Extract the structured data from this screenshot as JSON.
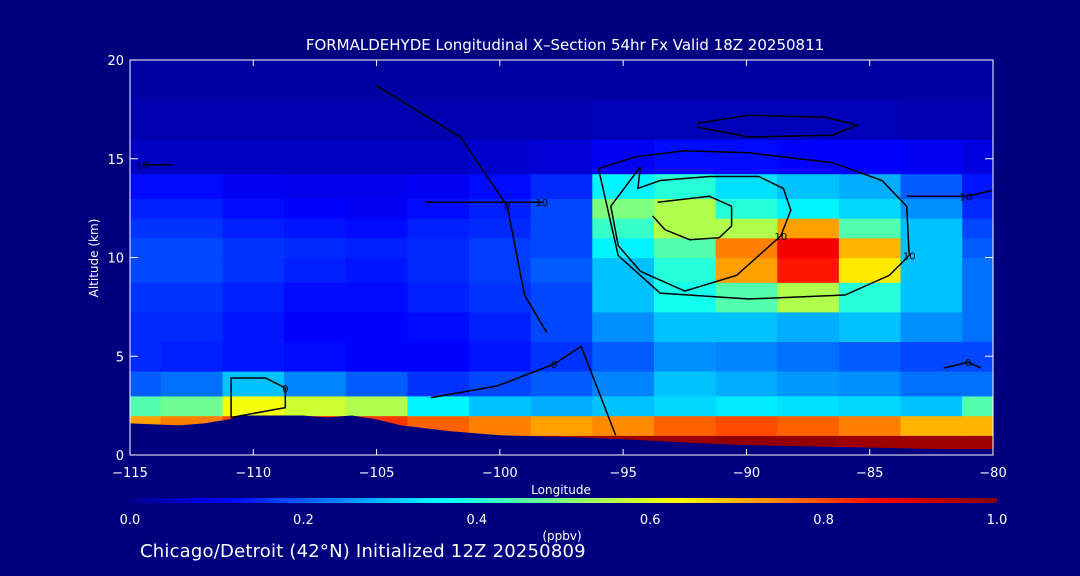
{
  "chart_data": {
    "type": "heatmap",
    "title": "FORMALDEHYDE Longitudinal X–Section 54hr  Fx Valid 18Z 20250811",
    "xlabel": "Longitude",
    "ylabel": "Altitude (km)",
    "xlim": [
      -115,
      -80
    ],
    "ylim": [
      0,
      20
    ],
    "x_ticks": [
      -115,
      -110,
      -105,
      -100,
      -95,
      -90,
      -85,
      -80
    ],
    "x_tick_labels": [
      "−115",
      "−110",
      "−105",
      "−100",
      "−95",
      "−90",
      "−85",
      "−80"
    ],
    "y_ticks": [
      0,
      5,
      10,
      15,
      20
    ],
    "y_tick_labels": [
      "0",
      "5",
      "10",
      "15",
      "20"
    ],
    "grid": false,
    "colorbar": {
      "range": [
        0.0,
        1.0
      ],
      "ticks": [
        0.0,
        0.2,
        0.4,
        0.6,
        0.8,
        1.0
      ],
      "tick_labels": [
        "0.0",
        "0.2",
        "0.4",
        "0.6",
        "0.8",
        "1.0"
      ],
      "unit": "(ppbv)",
      "colormap": "jet"
    },
    "x": [
      -115,
      -112.5,
      -110,
      -107.5,
      -105,
      -102.5,
      -100,
      -97.5,
      -95,
      -92.5,
      -90,
      -87.5,
      -85,
      -82.5,
      -80
    ],
    "y": [
      0.5,
      1.5,
      2.5,
      3.5,
      5,
      6.5,
      8,
      9.5,
      10.5,
      11.5,
      12.5,
      13.5,
      15,
      17,
      19
    ],
    "z": [
      [
        0.97,
        0.97,
        0.97,
        0.98,
        0.97,
        0.97,
        0.96,
        0.96,
        0.97,
        0.97,
        0.98,
        0.98,
        0.97,
        0.97,
        0.97
      ],
      [
        0.72,
        0.75,
        0.8,
        0.85,
        0.82,
        0.78,
        0.75,
        0.72,
        0.74,
        0.78,
        0.8,
        0.78,
        0.75,
        0.7,
        0.7
      ],
      [
        0.45,
        0.48,
        0.62,
        0.58,
        0.55,
        0.35,
        0.3,
        0.28,
        0.3,
        0.32,
        0.34,
        0.33,
        0.32,
        0.3,
        0.45
      ],
      [
        0.2,
        0.22,
        0.3,
        0.24,
        0.2,
        0.16,
        0.18,
        0.2,
        0.24,
        0.3,
        0.28,
        0.26,
        0.25,
        0.22,
        0.22
      ],
      [
        0.15,
        0.14,
        0.13,
        0.12,
        0.11,
        0.11,
        0.13,
        0.16,
        0.2,
        0.25,
        0.24,
        0.22,
        0.2,
        0.18,
        0.18
      ],
      [
        0.15,
        0.15,
        0.13,
        0.11,
        0.11,
        0.12,
        0.14,
        0.18,
        0.25,
        0.3,
        0.3,
        0.28,
        0.3,
        0.25,
        0.22
      ],
      [
        0.16,
        0.16,
        0.14,
        0.12,
        0.12,
        0.14,
        0.16,
        0.18,
        0.3,
        0.38,
        0.45,
        0.55,
        0.4,
        0.3,
        0.22
      ],
      [
        0.18,
        0.18,
        0.16,
        0.14,
        0.13,
        0.15,
        0.17,
        0.2,
        0.3,
        0.4,
        0.72,
        0.85,
        0.65,
        0.3,
        0.22
      ],
      [
        0.18,
        0.18,
        0.16,
        0.15,
        0.14,
        0.15,
        0.17,
        0.18,
        0.35,
        0.45,
        0.75,
        0.88,
        0.7,
        0.3,
        0.2
      ],
      [
        0.16,
        0.16,
        0.14,
        0.13,
        0.12,
        0.14,
        0.15,
        0.18,
        0.42,
        0.55,
        0.55,
        0.72,
        0.45,
        0.3,
        0.18
      ],
      [
        0.14,
        0.14,
        0.12,
        0.11,
        0.1,
        0.12,
        0.14,
        0.18,
        0.5,
        0.55,
        0.4,
        0.35,
        0.32,
        0.25,
        0.15
      ],
      [
        0.12,
        0.12,
        0.1,
        0.09,
        0.09,
        0.1,
        0.12,
        0.15,
        0.35,
        0.4,
        0.33,
        0.3,
        0.28,
        0.2,
        0.13
      ],
      [
        0.05,
        0.05,
        0.05,
        0.05,
        0.05,
        0.05,
        0.06,
        0.07,
        0.1,
        0.12,
        0.12,
        0.11,
        0.11,
        0.1,
        0.08
      ],
      [
        0.03,
        0.03,
        0.03,
        0.03,
        0.03,
        0.03,
        0.03,
        0.03,
        0.04,
        0.04,
        0.04,
        0.04,
        0.04,
        0.03,
        0.03
      ],
      [
        0.02,
        0.02,
        0.02,
        0.02,
        0.02,
        0.02,
        0.02,
        0.02,
        0.02,
        0.02,
        0.02,
        0.02,
        0.02,
        0.02,
        0.02
      ]
    ],
    "terrain": {
      "x": [
        -115,
        -113,
        -112,
        -111,
        -110.5,
        -108,
        -107,
        -106,
        -105,
        -104,
        -102,
        -100,
        -97,
        -95,
        -92,
        -90,
        -88,
        -86,
        -84,
        -82,
        -80
      ],
      "height_km": [
        1.6,
        1.5,
        1.6,
        1.8,
        2.0,
        2.0,
        1.9,
        2.0,
        1.8,
        1.5,
        1.2,
        1.0,
        0.9,
        0.8,
        0.6,
        0.5,
        0.45,
        0.4,
        0.35,
        0.3,
        0.3
      ]
    },
    "contours": [
      {
        "label": "10",
        "x": [
          -113.3,
          -114.5
        ],
        "y": [
          14.7,
          14.7
        ]
      },
      {
        "label": "10",
        "x": [
          -103.0,
          -98.3
        ],
        "y": [
          12.8,
          12.8
        ]
      },
      {
        "label": "10",
        "x": [
          -94.3,
          -94.4,
          -93.5,
          -91.5,
          -89.5,
          -88.5,
          -88.2,
          -88.6,
          -90.4,
          -92.5,
          -94.3,
          -95.2,
          -95.5,
          -94.3
        ],
        "y": [
          14.6,
          13.5,
          13.9,
          14.1,
          14.1,
          13.5,
          12.4,
          11.1,
          9.1,
          8.3,
          9.3,
          10.6,
          12.6,
          14.6
        ]
      },
      {
        "label": "",
        "x": [
          -93.6,
          -92.9,
          -91.5,
          -90.6,
          -90.6,
          -91.1,
          -92.3,
          -93.3,
          -93.8
        ],
        "y": [
          12.8,
          12.9,
          13.1,
          12.6,
          11.6,
          11.0,
          10.9,
          11.4,
          12.1
        ]
      },
      {
        "label": "",
        "x": [
          -92.0,
          -89.9,
          -86.8,
          -85.5,
          -86.5,
          -89.9,
          -92.0
        ],
        "y": [
          16.8,
          17.2,
          17.1,
          16.7,
          16.2,
          16.1,
          16.6
        ]
      },
      {
        "label": "10",
        "x": [
          -96.0,
          -94.5,
          -92.5,
          -89.9,
          -86.5,
          -84.5,
          -83.5,
          -83.4,
          -84.2,
          -86.0,
          -89.9,
          -93.5,
          -95.2,
          -96.0
        ],
        "y": [
          14.5,
          15.1,
          15.4,
          15.3,
          14.8,
          13.9,
          12.6,
          10.1,
          9.1,
          8.1,
          7.9,
          8.2,
          10.1,
          14.5
        ]
      },
      {
        "label": "0",
        "x": [
          -98.1,
          -99.0,
          -99.7,
          -101.6,
          -105.0
        ],
        "y": [
          6.2,
          8.1,
          12.6,
          16.1,
          18.7
        ]
      },
      {
        "label": "0",
        "x": [
          -102.8,
          -100.1,
          -97.8,
          -96.7,
          -95.3
        ],
        "y": [
          2.9,
          3.5,
          4.6,
          5.5,
          1.0
        ]
      },
      {
        "label": "0",
        "x": [
          -110.9,
          -110.9,
          -109.5,
          -108.7,
          -108.7,
          -110.9
        ],
        "y": [
          1.9,
          3.9,
          3.9,
          3.4,
          2.4,
          1.9
        ]
      },
      {
        "label": "10",
        "x": [
          -83.5,
          -81.1,
          -80.0
        ],
        "y": [
          13.1,
          13.1,
          13.4
        ]
      },
      {
        "label": "0",
        "x": [
          -82.0,
          -81.0,
          -80.5
        ],
        "y": [
          4.4,
          4.7,
          4.4
        ]
      }
    ]
  },
  "footer_text": "Chicago/Detroit (42°N) Initialized 12Z 20250809"
}
